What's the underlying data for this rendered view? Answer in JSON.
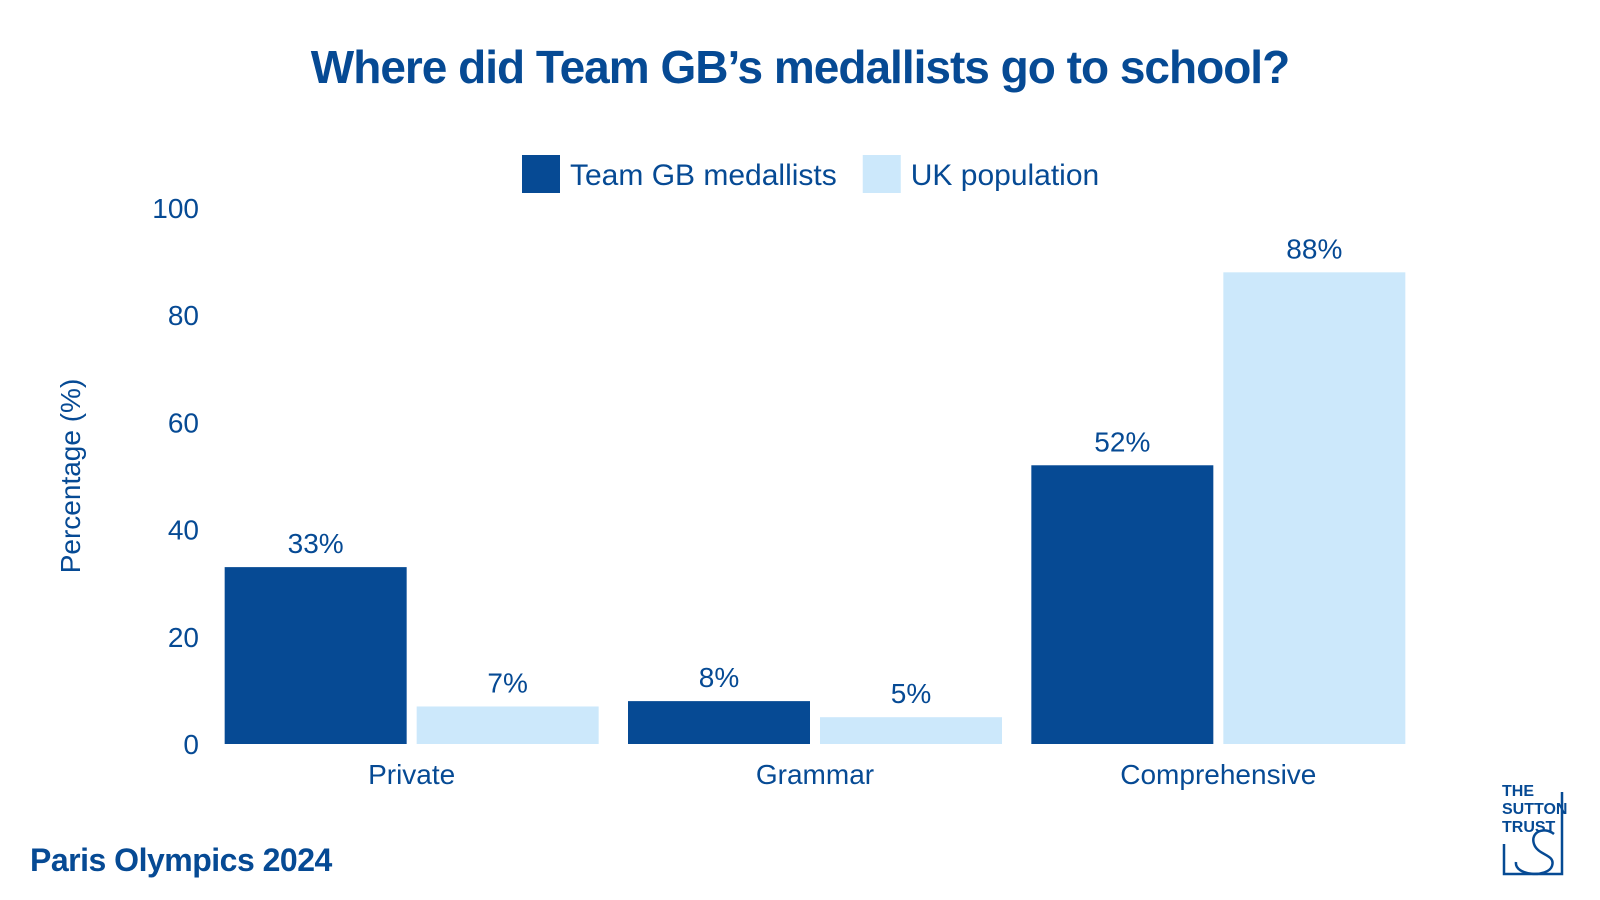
{
  "title": "Where did Team GB’s medallists go to school?",
  "footer": "Paris Olympics 2024",
  "logo": {
    "lines": [
      "THE",
      "SUTTON",
      "TRUST"
    ]
  },
  "colors": {
    "accent": "#064a94",
    "light": "#cce8fb"
  },
  "chart_data": {
    "type": "bar",
    "categories": [
      "Private",
      "Grammar",
      "Comprehensive"
    ],
    "series": [
      {
        "name": "Team GB medallists",
        "values": [
          33,
          8,
          52
        ],
        "labels": [
          "33%",
          "8%",
          "52%"
        ],
        "color": "#064a94"
      },
      {
        "name": "UK population",
        "values": [
          7,
          5,
          88
        ],
        "labels": [
          "7%",
          "5%",
          "88%"
        ],
        "color": "#cce8fb"
      }
    ],
    "xlabel": "",
    "ylabel": "Percentage (%)",
    "ylim": [
      0,
      100
    ],
    "yticks": [
      0,
      20,
      40,
      60,
      80,
      100
    ],
    "grid": false,
    "legend": "top-center"
  }
}
